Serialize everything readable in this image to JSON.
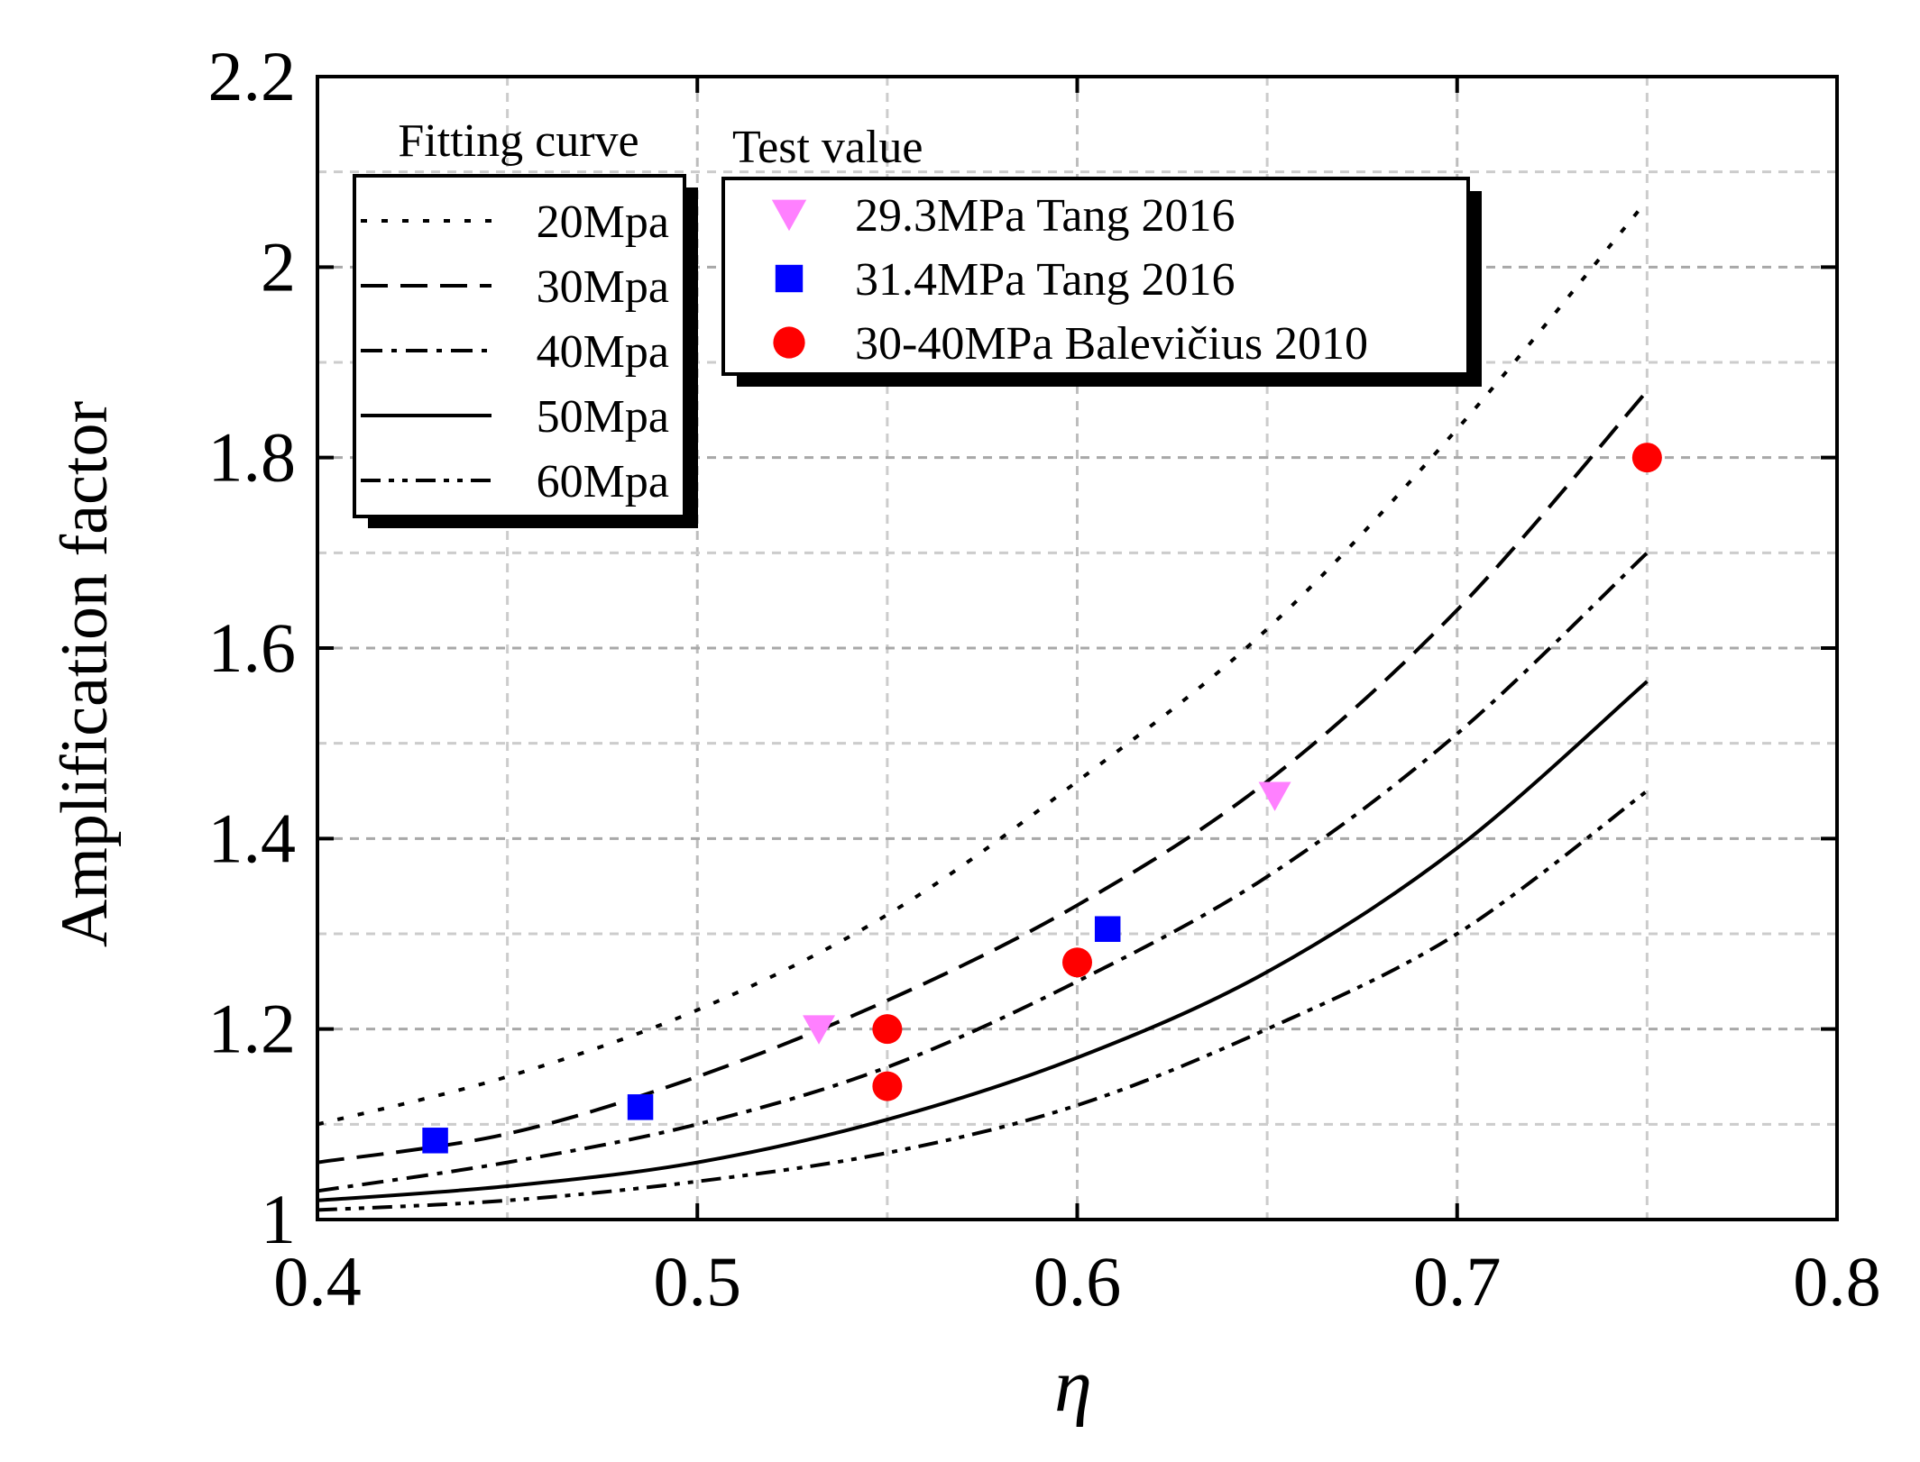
{
  "chart_data": {
    "type": "line",
    "xlabel": "η",
    "ylabel": "Amplification factor",
    "xlim": [
      0.4,
      0.8
    ],
    "ylim": [
      1.0,
      2.2
    ],
    "x_ticks": [
      0.4,
      0.5,
      0.6,
      0.7,
      0.8
    ],
    "x_tick_labels": [
      "0.4",
      "0.5",
      "0.6",
      "0.7",
      "0.8"
    ],
    "y_ticks": [
      1.0,
      1.2,
      1.4,
      1.6,
      1.8,
      2.0,
      2.2
    ],
    "y_tick_labels": [
      "1",
      "1.2",
      "1.4",
      "1.6",
      "1.8",
      "2",
      "2.2"
    ],
    "grid": true,
    "fitting_legend_title": "Fitting curve",
    "test_legend_title": "Test value",
    "curves": [
      {
        "name": "20Mpa",
        "dash": "dotted",
        "x": [
          0.4,
          0.45,
          0.5,
          0.55,
          0.6,
          0.65,
          0.7,
          0.75
        ],
        "y": [
          1.1,
          1.15,
          1.22,
          1.32,
          1.46,
          1.62,
          1.83,
          2.07
        ]
      },
      {
        "name": "30Mpa",
        "dash": "dashed",
        "x": [
          0.4,
          0.45,
          0.5,
          0.55,
          0.6,
          0.65,
          0.7,
          0.75
        ],
        "y": [
          1.06,
          1.09,
          1.15,
          1.23,
          1.33,
          1.46,
          1.64,
          1.87
        ]
      },
      {
        "name": "40Mpa",
        "dash": "dashdot",
        "x": [
          0.4,
          0.45,
          0.5,
          0.55,
          0.6,
          0.65,
          0.7,
          0.75
        ],
        "y": [
          1.03,
          1.06,
          1.1,
          1.16,
          1.25,
          1.36,
          1.51,
          1.7
        ]
      },
      {
        "name": "50Mpa",
        "dash": "solid",
        "x": [
          0.4,
          0.45,
          0.5,
          0.55,
          0.6,
          0.65,
          0.7,
          0.75
        ],
        "y": [
          1.02,
          1.035,
          1.06,
          1.105,
          1.17,
          1.26,
          1.39,
          1.565
        ]
      },
      {
        "name": "60Mpa",
        "dash": "dashdotdot",
        "x": [
          0.4,
          0.45,
          0.5,
          0.55,
          0.6,
          0.65,
          0.7,
          0.75
        ],
        "y": [
          1.01,
          1.02,
          1.04,
          1.07,
          1.12,
          1.2,
          1.3,
          1.45
        ]
      }
    ],
    "tests": [
      {
        "name": "29.3MPa Tang 2016",
        "marker": "triangle-down",
        "color": "#ff80ff",
        "x": [
          0.532,
          0.652
        ],
        "y": [
          1.2,
          1.445
        ]
      },
      {
        "name": "31.4MPa Tang 2016",
        "marker": "square",
        "color": "#0000ff",
        "x": [
          0.431,
          0.485,
          0.608
        ],
        "y": [
          1.083,
          1.118,
          1.305
        ]
      },
      {
        "name": "30-40MPa Balevičius 2010",
        "marker": "circle",
        "color": "#ff0000",
        "x": [
          0.55,
          0.55,
          0.6,
          0.75
        ],
        "y": [
          1.2,
          1.14,
          1.27,
          1.8
        ]
      }
    ]
  }
}
